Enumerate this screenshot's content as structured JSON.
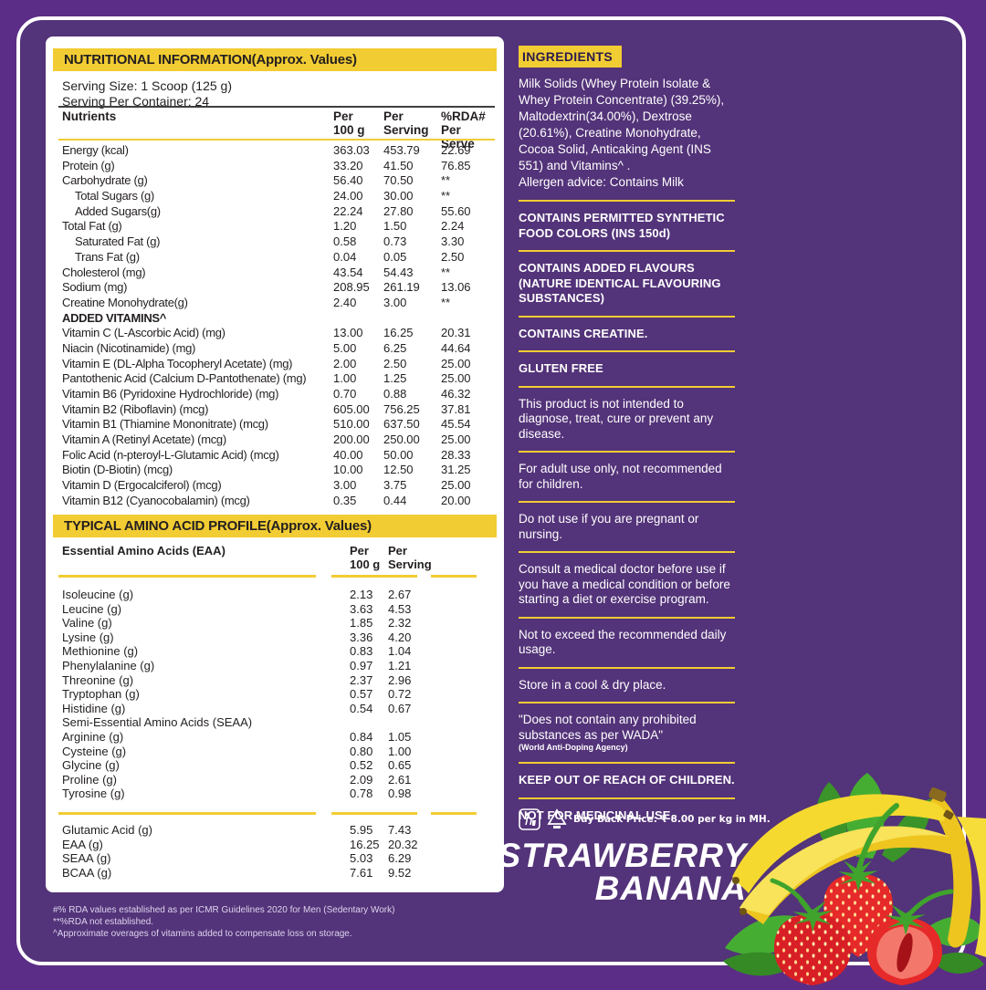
{
  "colors": {
    "purple_outer": "#5b2d86",
    "purple_inner": "#533379",
    "accent_yellow": "#f2cc33",
    "panel_white": "#ffffff",
    "text_dark": "#231f20"
  },
  "nutrition": {
    "title": "NUTRITIONAL INFORMATION(Approx. Values)",
    "serving_size": "Serving Size: 1 Scoop (125 g)",
    "servings_per_container": "Serving Per Container: 24",
    "header": {
      "nutrients": "Nutrients",
      "per_100g": "Per\n100 g",
      "per_serving": "Per\nServing",
      "rda": "%RDA#\nPer Serve"
    },
    "rows": [
      {
        "label": "Energy (kcal)",
        "per_100g": "363.03",
        "per_serving": "453.79",
        "rda": "22.69"
      },
      {
        "label": "Protein (g)",
        "per_100g": "33.20",
        "per_serving": "41.50",
        "rda": "76.85"
      },
      {
        "label": "Carbohydrate (g)",
        "per_100g": "56.40",
        "per_serving": "70.50",
        "rda": "**"
      },
      {
        "label": "Total Sugars (g)",
        "indent": true,
        "per_100g": "24.00",
        "per_serving": "30.00",
        "rda": "**"
      },
      {
        "label": "Added Sugars(g)",
        "indent": true,
        "per_100g": "22.24",
        "per_serving": "27.80",
        "rda": "55.60"
      },
      {
        "label": "Total Fat (g)",
        "per_100g": "1.20",
        "per_serving": "1.50",
        "rda": "2.24"
      },
      {
        "label": "Saturated Fat (g)",
        "indent": true,
        "per_100g": "0.58",
        "per_serving": "0.73",
        "rda": "3.30"
      },
      {
        "label": "Trans Fat (g)",
        "indent": true,
        "per_100g": "0.04",
        "per_serving": "0.05",
        "rda": "2.50"
      },
      {
        "label": "Cholesterol (mg)",
        "per_100g": "43.54",
        "per_serving": "54.43",
        "rda": "**"
      },
      {
        "label": "Sodium (mg)",
        "per_100g": "208.95",
        "per_serving": "261.19",
        "rda": "13.06"
      },
      {
        "label": "Creatine Monohydrate(g)",
        "per_100g": "2.40",
        "per_serving": "3.00",
        "rda": "**"
      },
      {
        "label": "ADDED VITAMINS^",
        "section": true
      },
      {
        "label": "Vitamin C (L-Ascorbic Acid) (mg)",
        "per_100g": "13.00",
        "per_serving": "16.25",
        "rda": "20.31"
      },
      {
        "label": "Niacin (Nicotinamide) (mg)",
        "per_100g": "5.00",
        "per_serving": "6.25",
        "rda": "44.64"
      },
      {
        "label": "Vitamin E (DL-Alpha Tocopheryl Acetate) (mg)",
        "per_100g": "2.00",
        "per_serving": "2.50",
        "rda": "25.00"
      },
      {
        "label": "Pantothenic Acid (Calcium D-Pantothenate) (mg)",
        "per_100g": "1.00",
        "per_serving": "1.25",
        "rda": "25.00"
      },
      {
        "label": "Vitamin B6 (Pyridoxine Hydrochloride) (mg)",
        "per_100g": "0.70",
        "per_serving": "0.88",
        "rda": "46.32"
      },
      {
        "label": "Vitamin B2 (Riboflavin) (mcg)",
        "per_100g": "605.00",
        "per_serving": "756.25",
        "rda": "37.81"
      },
      {
        "label": "Vitamin B1 (Thiamine Mononitrate) (mcg)",
        "per_100g": "510.00",
        "per_serving": "637.50",
        "rda": "45.54"
      },
      {
        "label": "Vitamin A (Retinyl Acetate) (mcg)",
        "per_100g": "200.00",
        "per_serving": "250.00",
        "rda": "25.00"
      },
      {
        "label": "Folic Acid (n-pteroyl-L-Glutamic Acid) (mcg)",
        "per_100g": "40.00",
        "per_serving": "50.00",
        "rda": "28.33"
      },
      {
        "label": "Biotin (D-Biotin) (mcg)",
        "per_100g": "10.00",
        "per_serving": "12.50",
        "rda": "31.25"
      },
      {
        "label": "Vitamin D (Ergocalciferol) (mcg)",
        "per_100g": "3.00",
        "per_serving": "3.75",
        "rda": "25.00"
      },
      {
        "label": "Vitamin B12 (Cyanocobalamin) (mcg)",
        "per_100g": "0.35",
        "per_serving": "0.44",
        "rda": "20.00"
      }
    ]
  },
  "amino": {
    "title": "TYPICAL AMINO ACID PROFILE(Approx. Values)",
    "header": {
      "label": "Essential Amino Acids (EAA)",
      "per_100g": "Per\n100 g",
      "per_serving": "Per\nServing"
    },
    "rows": [
      {
        "label": "Isoleucine (g)",
        "per_100g": "2.13",
        "per_serving": "2.67"
      },
      {
        "label": "Leucine (g)",
        "per_100g": "3.63",
        "per_serving": "4.53"
      },
      {
        "label": "Valine (g)",
        "per_100g": "1.85",
        "per_serving": "2.32"
      },
      {
        "label": "Lysine (g)",
        "per_100g": "3.36",
        "per_serving": "4.20"
      },
      {
        "label": "Methionine (g)",
        "per_100g": "0.83",
        "per_serving": "1.04"
      },
      {
        "label": "Phenylalanine (g)",
        "per_100g": "0.97",
        "per_serving": "1.21"
      },
      {
        "label": "Threonine (g)",
        "per_100g": "2.37",
        "per_serving": "2.96"
      },
      {
        "label": "Tryptophan (g)",
        "per_100g": "0.57",
        "per_serving": "0.72"
      },
      {
        "label": "Histidine (g)",
        "per_100g": "0.54",
        "per_serving": "0.67"
      },
      {
        "label": "Semi-Essential Amino Acids (SEAA)",
        "section": true
      },
      {
        "label": "Arginine (g)",
        "per_100g": "0.84",
        "per_serving": "1.05"
      },
      {
        "label": "Cysteine (g)",
        "per_100g": "0.80",
        "per_serving": "1.00"
      },
      {
        "label": "Glycine (g)",
        "per_100g": "0.52",
        "per_serving": "0.65"
      },
      {
        "label": "Proline (g)",
        "per_100g": "2.09",
        "per_serving": "2.61"
      },
      {
        "label": "Tyrosine (g)",
        "per_100g": "0.78",
        "per_serving": "0.98"
      }
    ],
    "summary": [
      {
        "label": "Glutamic Acid (g)",
        "per_100g": "5.95",
        "per_serving": "7.43"
      },
      {
        "label": "EAA (g)",
        "per_100g": "16.25",
        "per_serving": "20.32"
      },
      {
        "label": "SEAA (g)",
        "per_100g": "5.03",
        "per_serving": "6.29"
      },
      {
        "label": "BCAA (g)",
        "per_100g": "7.61",
        "per_serving": "9.52"
      }
    ]
  },
  "footnotes": [
    "#% RDA values established as per ICMR Guidelines 2020 for Men (Sedentary Work)",
    "**%RDA not established.",
    "^Approximate overages of vitamins added to compensate loss on storage."
  ],
  "ingredients": {
    "title": "INGREDIENTS",
    "text": "Milk Solids (Whey Protein Isolate & Whey Protein Concentrate) (39.25%), Maltodextrin(34.00%), Dextrose (20.61%), Creatine Monohydrate, Cocoa Solid, Anticaking Agent (INS 551) and Vitamins^ .",
    "allergen": "Allergen advice: Contains Milk"
  },
  "notices": [
    {
      "text": "CONTAINS PERMITTED SYNTHETIC FOOD COLORS (INS 150d)",
      "bold": true
    },
    {
      "text": "CONTAINS ADDED FLAVOURS (NATURE IDENTICAL FLAVOURING SUBSTANCES)",
      "bold": true
    },
    {
      "text": "CONTAINS CREATINE.",
      "bold": true
    },
    {
      "text": "GLUTEN FREE",
      "bold": true
    },
    {
      "text": "This product is not intended to diagnose, treat, cure or prevent any disease.",
      "bold": false
    },
    {
      "text": "For adult use only, not recommended for children.",
      "bold": false
    },
    {
      "text": "Do not use if you are pregnant or nursing.",
      "bold": false
    },
    {
      "text": "Consult a medical doctor before use if you have a medical condition or before starting a diet or exercise program.",
      "bold": false
    },
    {
      "text": "Not to exceed the recommended daily usage.",
      "bold": false
    },
    {
      "text": "Store in a cool & dry place.",
      "bold": false
    },
    {
      "text": "\"Does not contain any prohibited substances as per WADA\"",
      "bold": false,
      "sub": "(World Anti-Doping Agency)"
    },
    {
      "text": "KEEP OUT OF REACH OF CHILDREN.",
      "bold": true
    },
    {
      "text": "NOT FOR MEDICINAL USE.",
      "bold": true
    }
  ],
  "recycling": {
    "icons": [
      "tidyman-icon",
      "recycle-icon"
    ],
    "buy_back": "Buy Back Price: ₹ 8.00 per kg in MH."
  },
  "flavor": {
    "line1": "STRAWBERRY",
    "line2": "BANANA"
  }
}
